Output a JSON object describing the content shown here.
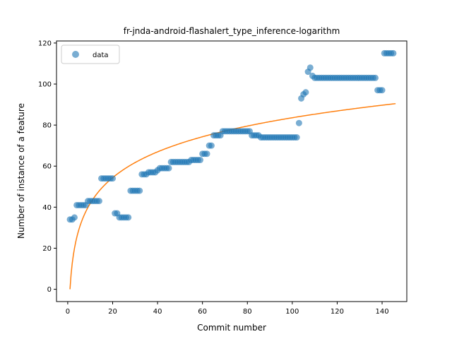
{
  "chart_data": {
    "type": "scatter",
    "title": "fr-jnda-android-flashalert_type_inference-logarithm",
    "xlabel": "Commit number",
    "ylabel": "Number of instance of a feature",
    "xlim": [
      -5,
      151
    ],
    "ylim": [
      -6,
      121
    ],
    "xticks": [
      0,
      20,
      40,
      60,
      80,
      100,
      120,
      140
    ],
    "yticks": [
      0,
      20,
      40,
      60,
      80,
      100,
      120
    ],
    "grid": false,
    "legend": {
      "position": "top-left",
      "entries": [
        "data"
      ]
    },
    "colors": {
      "data": "#1f77b4",
      "fit": "#ff7f0e"
    },
    "series": [
      {
        "name": "data",
        "kind": "scatter",
        "x": [
          1,
          2,
          3,
          4,
          5,
          6,
          7,
          8,
          9,
          10,
          11,
          12,
          13,
          14,
          15,
          16,
          17,
          18,
          19,
          20,
          21,
          22,
          23,
          24,
          25,
          26,
          27,
          28,
          29,
          30,
          31,
          32,
          33,
          34,
          35,
          36,
          37,
          38,
          39,
          40,
          41,
          42,
          43,
          44,
          45,
          46,
          47,
          48,
          49,
          50,
          51,
          52,
          53,
          54,
          55,
          56,
          57,
          58,
          59,
          60,
          61,
          62,
          63,
          64,
          65,
          66,
          67,
          68,
          69,
          70,
          71,
          72,
          73,
          74,
          75,
          76,
          77,
          78,
          79,
          80,
          81,
          82,
          83,
          84,
          85,
          86,
          87,
          88,
          89,
          90,
          91,
          92,
          93,
          94,
          95,
          96,
          97,
          98,
          99,
          100,
          101,
          102,
          103,
          104,
          105,
          106,
          107,
          108,
          109,
          110,
          111,
          112,
          113,
          114,
          115,
          116,
          117,
          118,
          119,
          120,
          121,
          122,
          123,
          124,
          125,
          126,
          127,
          128,
          129,
          130,
          131,
          132,
          133,
          134,
          135,
          136,
          137,
          138,
          139,
          140,
          141,
          142,
          143,
          144,
          145
        ],
        "y": [
          34,
          34,
          35,
          41,
          41,
          41,
          41,
          41,
          43,
          43,
          43,
          43,
          43,
          43,
          54,
          54,
          54,
          54,
          54,
          54,
          37,
          37,
          35,
          35,
          35,
          35,
          35,
          48,
          48,
          48,
          48,
          48,
          56,
          56,
          56,
          57,
          57,
          57,
          57,
          58,
          59,
          59,
          59,
          59,
          59,
          62,
          62,
          62,
          62,
          62,
          62,
          62,
          62,
          62,
          63,
          63,
          63,
          63,
          63,
          66,
          66,
          66,
          70,
          70,
          75,
          75,
          75,
          75,
          77,
          77,
          77,
          77,
          77,
          77,
          77,
          77,
          77,
          77,
          77,
          77,
          77,
          75,
          75,
          75,
          75,
          74,
          74,
          74,
          74,
          74,
          74,
          74,
          74,
          74,
          74,
          74,
          74,
          74,
          74,
          74,
          74,
          74,
          81,
          93,
          95,
          96,
          106,
          108,
          104,
          103,
          103,
          103,
          103,
          103,
          103,
          103,
          103,
          103,
          103,
          103,
          103,
          103,
          103,
          103,
          103,
          103,
          103,
          103,
          103,
          103,
          103,
          103,
          103,
          103,
          103,
          103,
          103,
          97,
          97,
          97,
          115,
          115,
          115,
          115,
          115
        ]
      },
      {
        "name": "",
        "kind": "line",
        "fit": {
          "a": 18.15,
          "b": 0,
          "range": [
            1,
            146
          ]
        }
      }
    ]
  }
}
